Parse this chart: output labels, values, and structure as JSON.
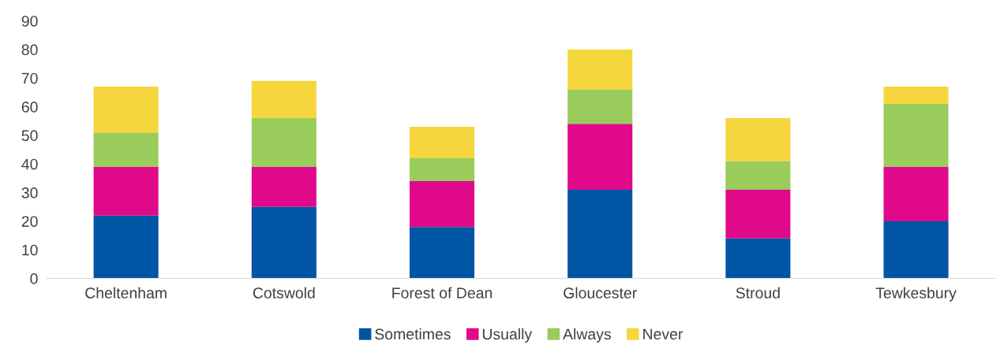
{
  "chart_data": {
    "type": "bar",
    "stacked": true,
    "categories": [
      "Cheltenham",
      "Cotswold",
      "Forest of Dean",
      "Gloucester",
      "Stroud",
      "Tewkesbury"
    ],
    "series": [
      {
        "name": "Sometimes",
        "color": "#0055a5",
        "values": [
          22,
          25,
          18,
          31,
          14,
          20
        ]
      },
      {
        "name": "Usually",
        "color": "#e0098a",
        "values": [
          17,
          14,
          16,
          23,
          17,
          19
        ]
      },
      {
        "name": "Always",
        "color": "#99cc5a",
        "values": [
          12,
          17,
          8,
          12,
          10,
          22
        ]
      },
      {
        "name": "Never",
        "color": "#f5d63d",
        "values": [
          16,
          13,
          11,
          14,
          15,
          6
        ]
      }
    ],
    "ylim": [
      0,
      90
    ],
    "yticks": [
      0,
      10,
      20,
      30,
      40,
      50,
      60,
      70,
      80,
      90
    ],
    "grid": false,
    "legend": "bottom"
  }
}
